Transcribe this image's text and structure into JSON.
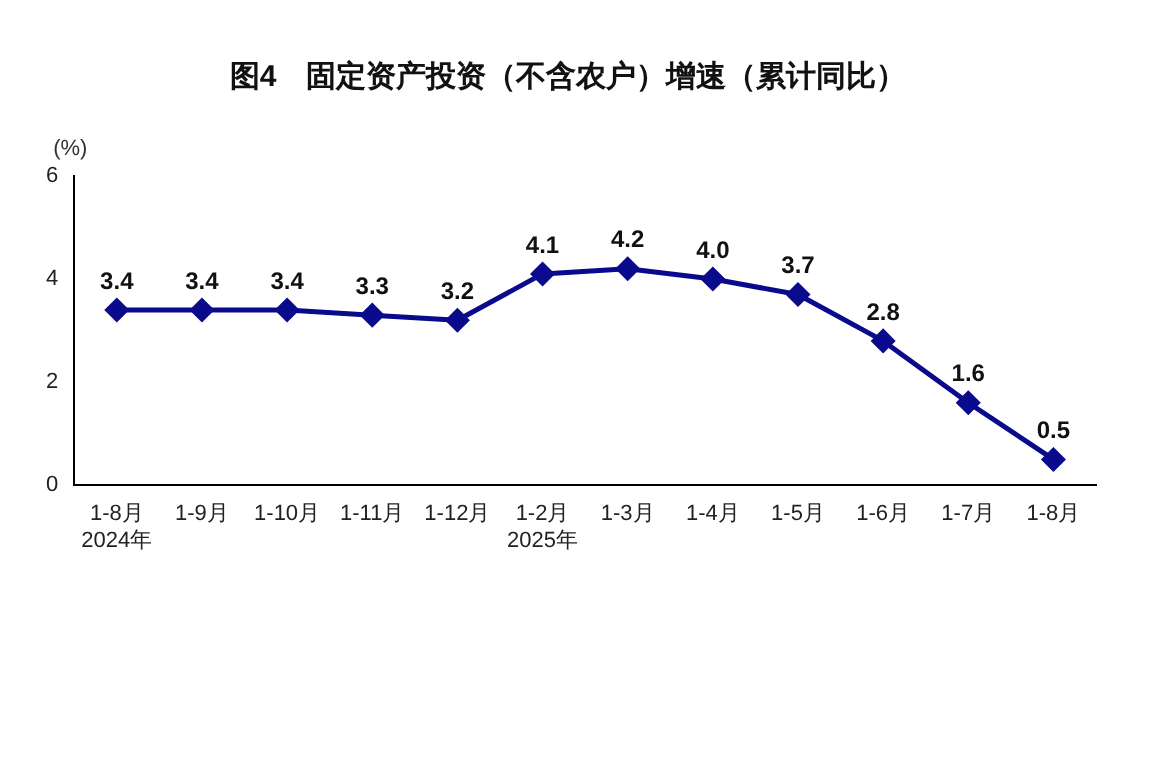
{
  "chart_data": {
    "type": "line",
    "title": "图4　固定资产投资（不含农户）增速（累计同比）",
    "ylabel": "(%)",
    "categories": [
      "1-8月\n2024年",
      "1-9月",
      "1-10月",
      "1-11月",
      "1-12月",
      "1-2月\n2025年",
      "1-3月",
      "1-4月",
      "1-5月",
      "1-6月",
      "1-7月",
      "1-8月"
    ],
    "series": [
      {
        "color": "#0a0a8c",
        "values": [
          3.4,
          3.4,
          3.4,
          3.3,
          3.2,
          4.1,
          4.2,
          4.0,
          3.7,
          2.8,
          1.6,
          0.5
        ],
        "value_labels": [
          "3.4",
          "3.4",
          "3.4",
          "3.3",
          "3.2",
          "4.1",
          "4.2",
          "4.0",
          "3.7",
          "2.8",
          "1.6",
          "0.5"
        ]
      }
    ],
    "ylim": [
      0,
      6
    ],
    "yticks": [
      0,
      2,
      4,
      6
    ],
    "grid": false,
    "legend": false,
    "marker": "diamond",
    "line_style": "solid"
  }
}
